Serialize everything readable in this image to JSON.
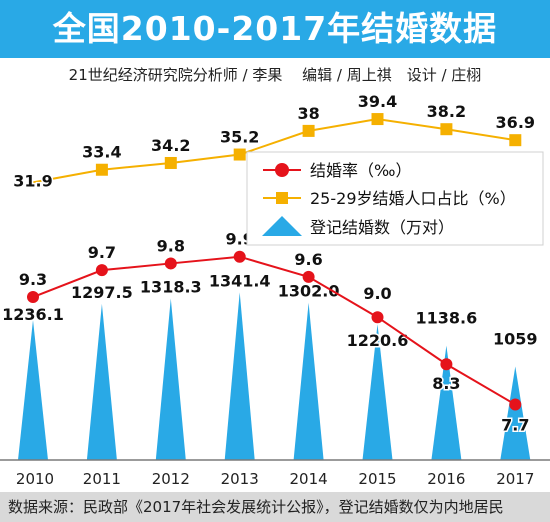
{
  "header": {
    "title": "全国2010-2017年结婚数据",
    "credits": "21世纪经济研究院分析师 / 李果　 编辑 / 周上祺　设计 / 庄栩"
  },
  "footer": {
    "source": "数据来源：民政部《2017年社会发展统计公报》，登记结婚数仅为内地居民"
  },
  "colors": {
    "title_bg": "#29a9e6",
    "marriage_rate": "#e5131b",
    "age_share": "#f5b000",
    "registrations": "#29a9e6"
  },
  "chart_data": {
    "type": "combo",
    "categories": [
      "2010",
      "2011",
      "2012",
      "2013",
      "2014",
      "2015",
      "2016",
      "2017"
    ],
    "series": [
      {
        "name": "结婚率（‰）",
        "kind": "line-circle",
        "values": [
          9.3,
          9.7,
          9.8,
          9.9,
          9.6,
          9.0,
          8.3,
          7.7
        ],
        "labels": [
          "9.3",
          "9.7",
          "9.8",
          "9.9",
          "9.6",
          "9.0",
          "8.3",
          "7.7"
        ]
      },
      {
        "name": "25-29岁结婚人口占比（%）",
        "kind": "line-square",
        "values": [
          31.9,
          33.4,
          34.2,
          35.2,
          38,
          39.4,
          38.2,
          36.9
        ],
        "labels": [
          "31.9",
          "33.4",
          "34.2",
          "35.2",
          "38",
          "39.4",
          "38.2",
          "36.9"
        ]
      },
      {
        "name": "登记结婚数（万对）",
        "kind": "spike",
        "values": [
          1236.1,
          1297.5,
          1318.3,
          1341.4,
          1302.0,
          1220.6,
          1138.6,
          1059
        ],
        "labels": [
          "1236.1",
          "1297.5",
          "1318.3",
          "1341.4",
          "1302.0",
          "1220.6",
          "1138.6",
          "1059"
        ]
      }
    ],
    "legend_position": "right-middle",
    "grid": false
  }
}
